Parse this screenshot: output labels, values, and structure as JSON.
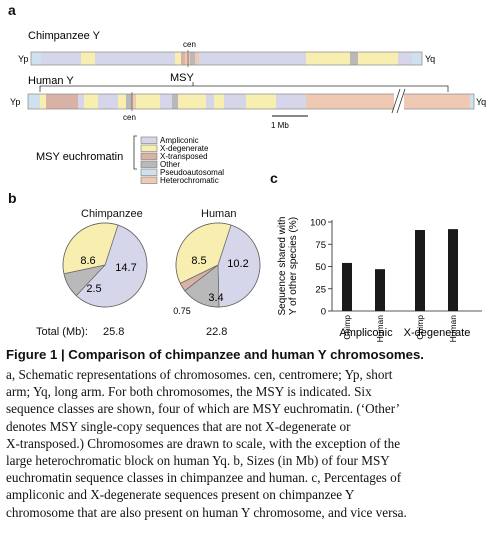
{
  "panels": {
    "a": "a",
    "b": "b",
    "c": "c"
  },
  "chromosomes": {
    "chimp_label": "Chimpanzee Y",
    "human_label": "Human Y",
    "yp": "Yp",
    "yq": "Yq",
    "cen": "cen",
    "msy": "MSY",
    "scale": "1 Mb"
  },
  "legend": {
    "title": "MSY euchromatin",
    "items": [
      {
        "label": "Ampliconic",
        "color": "#d6d6ea"
      },
      {
        "label": "X-degenerate",
        "color": "#f7eeb0"
      },
      {
        "label": "X-transposed",
        "color": "#d8b2a6"
      },
      {
        "label": "Other",
        "color": "#b9b9b9"
      },
      {
        "label": "Pseudoautosomal",
        "color": "#cfe1ef"
      },
      {
        "label": "Heterochromatic",
        "color": "#f0c9b4"
      }
    ]
  },
  "pies": {
    "total_label": "Total (Mb):",
    "chimp": {
      "title": "Chimpanzee",
      "total": "25.8",
      "labels": [
        "8.6",
        "14.7",
        "2.5"
      ]
    },
    "human": {
      "title": "Human",
      "total": "22.8",
      "labels": [
        "8.5",
        "10.2",
        "3.4",
        "0.75"
      ]
    }
  },
  "chart_data": [
    {
      "type": "pie",
      "title": "Chimpanzee",
      "slices": [
        {
          "label": "Ampliconic",
          "value": 14.7,
          "color": "#d6d6ea"
        },
        {
          "label": "Other",
          "value": 2.5,
          "color": "#b9b9b9"
        },
        {
          "label": "X-degenerate",
          "value": 8.6,
          "color": "#f7eeb0"
        }
      ],
      "total": 25.8
    },
    {
      "type": "pie",
      "title": "Human",
      "slices": [
        {
          "label": "Ampliconic",
          "value": 10.2,
          "color": "#d6d6ea"
        },
        {
          "label": "Other",
          "value": 3.4,
          "color": "#b9b9b9"
        },
        {
          "label": "X-transposed",
          "value": 0.75,
          "color": "#d8b2a6"
        },
        {
          "label": "X-degenerate",
          "value": 8.5,
          "color": "#f7eeb0"
        }
      ],
      "total": 22.8
    },
    {
      "type": "bar",
      "categories": [
        "Chimp",
        "Human",
        "Chimp",
        "Human"
      ],
      "groups": [
        "Ampliconic",
        "Ampliconic",
        "X-degenerate",
        "X-degenerate"
      ],
      "values": [
        54,
        47,
        91,
        92
      ],
      "ylabel": "Sequence shared with Y of other species (%)",
      "yticks": [
        0,
        25,
        50,
        75,
        100
      ],
      "ylim": [
        0,
        100
      ],
      "group_labels": [
        "Ampliconic",
        "X-degenerate"
      ]
    }
  ],
  "caption": {
    "title": "Figure 1 | Comparison of chimpanzee and human Y chromosomes.",
    "lines": [
      "a, Schematic representations of chromosomes. cen, centromere; Yp, short",
      "arm; Yq, long arm. For both chromosomes, the MSY is indicated. Six",
      "sequence classes are shown, four of which are MSY euchromatin. (‘Other’",
      "denotes MSY single-copy sequences that are not X-degenerate or",
      "X-transposed.) Chromosomes are drawn to scale, with the exception of the",
      "large heterochromatic block on human Yq. b, Sizes (in Mb) of four MSY",
      "euchromatin sequence classes in chimpanzee and human. c, Percentages of",
      "ampliconic and X-degenerate sequences present on chimpanzee Y",
      "chromosome that are also present on human Y chromosome, and vice versa."
    ]
  }
}
